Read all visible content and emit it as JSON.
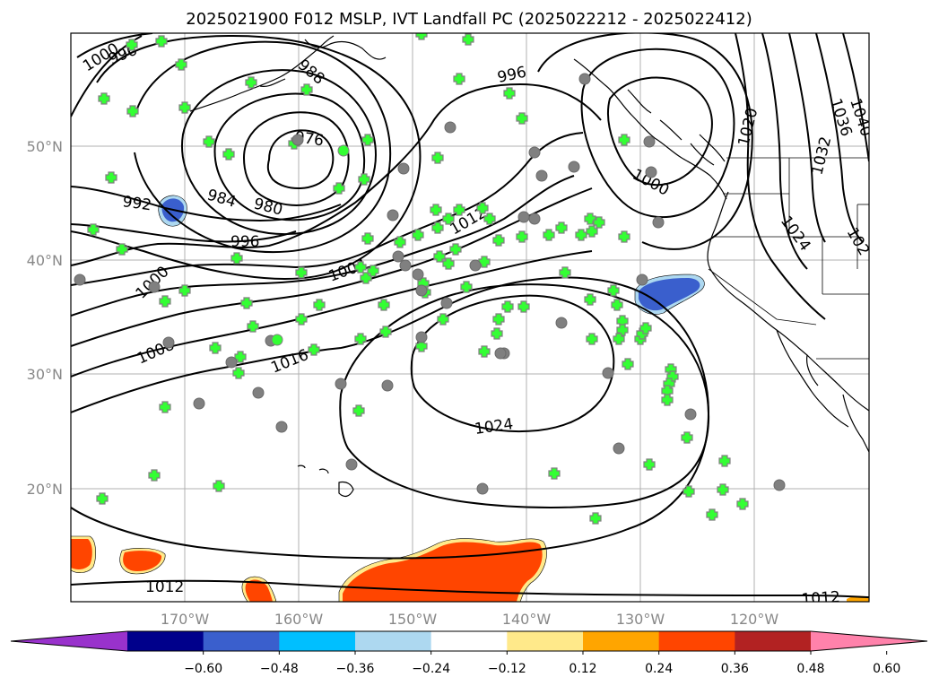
{
  "figure": {
    "title": "2025021900 F012 MSLP, IVT Landfall PC (2025022212 - 2025022412)"
  },
  "axes": {
    "lat_labels": [
      "50°N",
      "40°N",
      "30°N",
      "20°N"
    ],
    "lon_labels": [
      "170°W",
      "160°W",
      "150°W",
      "140°W",
      "130°W",
      "120°W"
    ]
  },
  "colorbar": {
    "colors": [
      "#9932CC",
      "#00008B",
      "#3A5FCD",
      "#00BFFF",
      "#ADD8F0",
      "#FFFFFF",
      "#FFE98A",
      "#FFA500",
      "#FF4500",
      "#B22222",
      "#FF82AB"
    ],
    "tick_labels": [
      "−0.60",
      "−0.48",
      "−0.36",
      "−0.24",
      "−0.12",
      "0.12",
      "0.24",
      "0.36",
      "0.48",
      "0.60"
    ],
    "extend": "both"
  },
  "contour_labels": [
    "1000",
    "996",
    "988",
    "976",
    "984",
    "980",
    "992",
    "996",
    "1000",
    "1004",
    "1008",
    "1012",
    "1016",
    "1024",
    "996",
    "1000",
    "1020",
    "1024",
    "1032",
    "1036",
    "1040",
    "1012",
    "1012",
    "102"
  ],
  "marker_colors": {
    "fill": "#33FF33",
    "edge": "#808080",
    "edge_circle": "#7A7A7A"
  }
}
